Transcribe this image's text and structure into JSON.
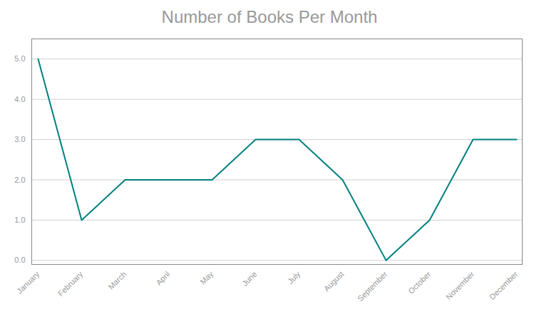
{
  "chart_data": {
    "type": "line",
    "title": "Number of Books Per Month",
    "categories": [
      "January",
      "February",
      "March",
      "April",
      "May",
      "June",
      "July",
      "August",
      "September",
      "October",
      "November",
      "December"
    ],
    "values": [
      5,
      1,
      2,
      2,
      2,
      3,
      3,
      2,
      0,
      1,
      3,
      3
    ],
    "color": "#008080",
    "ylim": [
      -0.1,
      5.5
    ],
    "yticks": [
      0,
      1,
      2,
      3,
      4,
      5
    ],
    "grid": true
  }
}
